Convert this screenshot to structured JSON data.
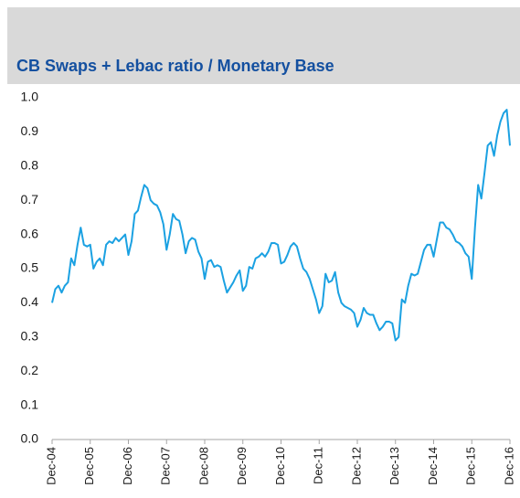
{
  "chart_data": {
    "type": "line",
    "title": "CB Swaps + Lebac ratio / Monetary Base",
    "categories": [
      "Dec-04",
      null,
      null,
      null,
      null,
      null,
      null,
      null,
      null,
      null,
      null,
      null,
      "Dec-05",
      null,
      null,
      null,
      null,
      null,
      null,
      null,
      null,
      null,
      null,
      null,
      "Dec-06",
      null,
      null,
      null,
      null,
      null,
      null,
      null,
      null,
      null,
      null,
      null,
      "Dec-07",
      null,
      null,
      null,
      null,
      null,
      null,
      null,
      null,
      null,
      null,
      null,
      "Dec-08",
      null,
      null,
      null,
      null,
      null,
      null,
      null,
      null,
      null,
      null,
      null,
      "Dec-09",
      null,
      null,
      null,
      null,
      null,
      null,
      null,
      null,
      null,
      null,
      null,
      "Dec-10",
      null,
      null,
      null,
      null,
      null,
      null,
      null,
      null,
      null,
      null,
      null,
      "Dec-11",
      null,
      null,
      null,
      null,
      null,
      null,
      null,
      null,
      null,
      null,
      null,
      "Dec-12",
      null,
      null,
      null,
      null,
      null,
      null,
      null,
      null,
      null,
      null,
      null,
      "Dec-13",
      null,
      null,
      null,
      null,
      null,
      null,
      null,
      null,
      null,
      null,
      null,
      "Dec-14",
      null,
      null,
      null,
      null,
      null,
      null,
      null,
      null,
      null,
      null,
      null,
      "Dec-15",
      null,
      null,
      null,
      null,
      null,
      null,
      null,
      null,
      null,
      null,
      null,
      "Dec-16"
    ],
    "values": [
      0.4,
      0.44,
      0.45,
      0.43,
      0.45,
      0.46,
      0.53,
      0.51,
      0.57,
      0.62,
      0.57,
      0.565,
      0.57,
      0.5,
      0.52,
      0.53,
      0.51,
      0.57,
      0.58,
      0.575,
      0.59,
      0.58,
      0.59,
      0.6,
      0.54,
      0.58,
      0.66,
      0.67,
      0.71,
      0.745,
      0.735,
      0.7,
      0.69,
      0.685,
      0.665,
      0.63,
      0.555,
      0.6,
      0.66,
      0.645,
      0.64,
      0.6,
      0.545,
      0.58,
      0.59,
      0.585,
      0.55,
      0.53,
      0.47,
      0.52,
      0.525,
      0.505,
      0.51,
      0.505,
      0.465,
      0.43,
      0.445,
      0.46,
      0.48,
      0.495,
      0.435,
      0.45,
      0.505,
      0.5,
      0.53,
      0.535,
      0.545,
      0.535,
      0.55,
      0.575,
      0.575,
      0.57,
      0.515,
      0.52,
      0.54,
      0.565,
      0.575,
      0.565,
      0.53,
      0.5,
      0.49,
      0.47,
      0.44,
      0.41,
      0.37,
      0.39,
      0.485,
      0.46,
      0.465,
      0.49,
      0.43,
      0.4,
      0.39,
      0.385,
      0.38,
      0.37,
      0.33,
      0.35,
      0.385,
      0.37,
      0.365,
      0.365,
      0.34,
      0.32,
      0.33,
      0.345,
      0.345,
      0.34,
      0.29,
      0.3,
      0.41,
      0.4,
      0.45,
      0.485,
      0.48,
      0.485,
      0.52,
      0.555,
      0.57,
      0.57,
      0.535,
      0.585,
      0.635,
      0.635,
      0.62,
      0.615,
      0.6,
      0.58,
      0.575,
      0.565,
      0.545,
      0.535,
      0.47,
      0.62,
      0.745,
      0.705,
      0.78,
      0.86,
      0.87,
      0.83,
      0.89,
      0.93,
      0.955,
      0.965,
      0.86
    ],
    "color": "#1ba1e2",
    "ylim": [
      0,
      1
    ],
    "yticks": [
      {
        "value": 0,
        "label": "0.0"
      },
      0.1,
      0.2,
      0.3,
      0.4,
      0.5,
      0.6,
      0.7,
      0.8,
      0.9,
      {
        "value": 1,
        "label": "1.0"
      }
    ]
  }
}
